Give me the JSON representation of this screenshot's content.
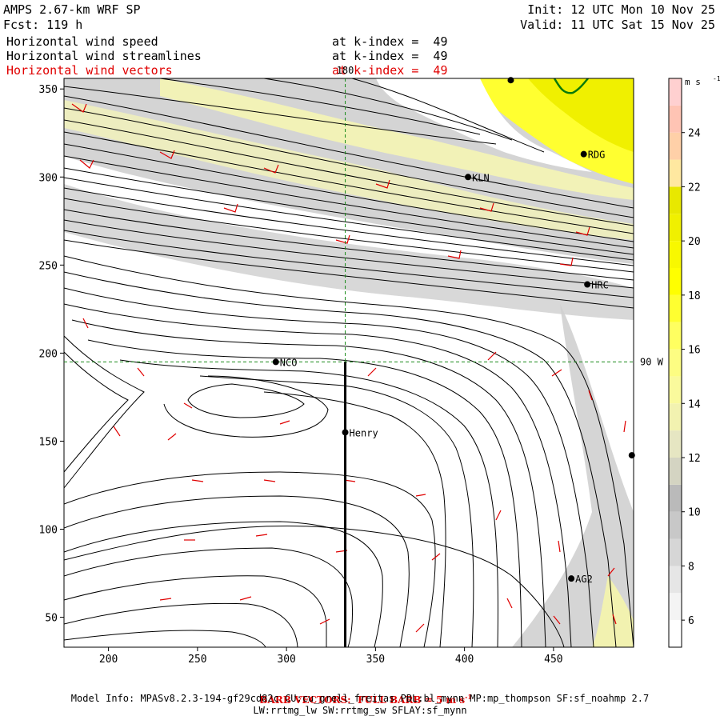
{
  "header": {
    "model": "AMPS 2.67-km WRF SP",
    "fcst": "Fcst: 119 h",
    "init": "Init: 12 UTC Mon 10 Nov 25",
    "valid": "Valid: 11 UTC Sat 15 Nov 25",
    "field1": "Horizontal wind speed",
    "field2": "Horizontal wind streamlines",
    "field3": "Horizontal wind vectors",
    "kindex1": "at k-index =  49",
    "kindex2": "at k-index =  49",
    "kindex3": "at k-index =  49"
  },
  "chart_data": {
    "type": "heatmap",
    "description_fields": [
      "wind speed (shaded)",
      "streamlines",
      "wind barbs"
    ],
    "x_ticks": [
      200,
      250,
      300,
      350,
      400,
      450
    ],
    "y_ticks": [
      50,
      100,
      150,
      200,
      250,
      300,
      350
    ],
    "xlim": [
      175,
      495
    ],
    "ylim": [
      33,
      356
    ],
    "meridian_label": "180",
    "meridian_x": 333,
    "parallel_label": "90 W",
    "parallel_y": 195,
    "cross_section_line": {
      "x": 333,
      "y_from": 33,
      "y_to": 195
    },
    "stations": [
      {
        "name": "NCO",
        "x": 294,
        "y": 195
      },
      {
        "name": "Henry",
        "x": 333,
        "y": 155
      },
      {
        "name": "KLN",
        "x": 402,
        "y": 300
      },
      {
        "name": "RDG",
        "x": 467,
        "y": 313
      },
      {
        "name": "HRC",
        "x": 469,
        "y": 239
      },
      {
        "name": "AG2",
        "x": 460,
        "y": 72
      },
      {
        "name": "",
        "x": 494,
        "y": 142
      },
      {
        "name": "",
        "x": 426,
        "y": 355
      }
    ],
    "colorbar": {
      "unit": "m s",
      "unit_exp": "-1",
      "levels": [
        5,
        6,
        7,
        8,
        9,
        10,
        11,
        12,
        13,
        14,
        15,
        16,
        17,
        18,
        19,
        20,
        21,
        22,
        23,
        24,
        25,
        26
      ],
      "tick_labels": [
        6,
        8,
        10,
        12,
        14,
        16,
        18,
        20,
        22,
        24
      ],
      "colors": [
        "#ffffff",
        "#f4f4f4",
        "#e6e6e6",
        "#d6d6d6",
        "#c8c8c8",
        "#bababa",
        "#d4d4c2",
        "#e6e6c2",
        "#f2f2b0",
        "#fafa9c",
        "#fdfd82",
        "#ffff60",
        "#ffff30",
        "#ffff00",
        "#f8f800",
        "#f0f000",
        "#e8e800",
        "#ffe8a0",
        "#ffd0a8",
        "#ffc4b4",
        "#ffd0d0"
      ]
    }
  },
  "footer": {
    "barb_prefix": "BARB VECTORS:  FULL BARB = 5 m s",
    "barb_exp": "-1",
    "model_info": "Model Info: MPASv8.2.3-194-gf29cd82c CU:cu_grell_freitas PBL:bl_mynn MP:mp_thompson SF:sf_noahmp 2.7",
    "model_info2": "LW:rrtmg_lw SW:rrtmg_sw SFLAY:sf_mynn"
  }
}
